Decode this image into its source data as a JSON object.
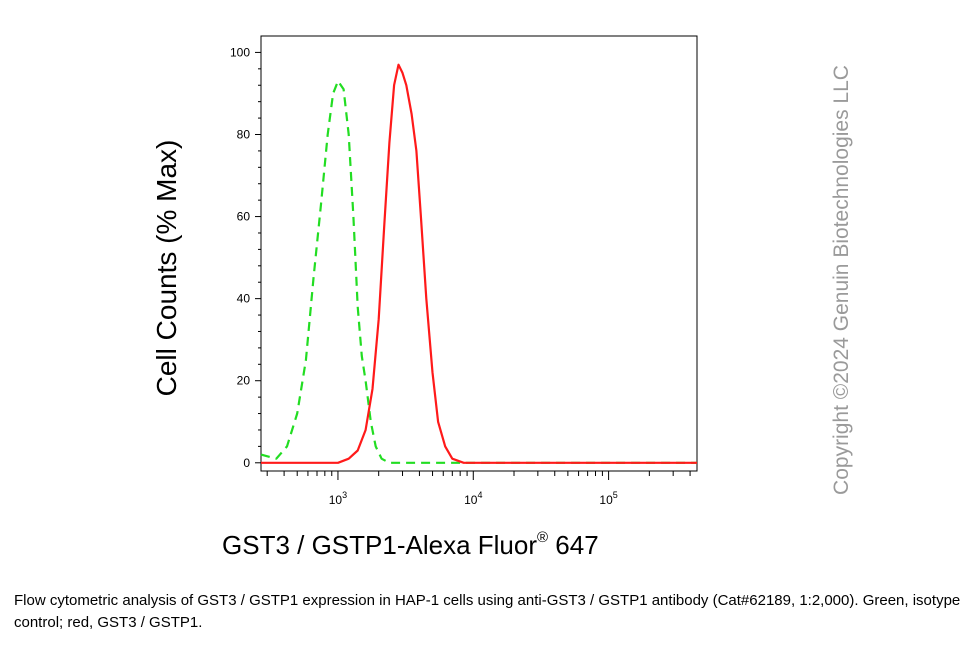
{
  "chart_data": {
    "type": "line",
    "ylabel": "Cell Counts (% Max)",
    "xlabel": {
      "main": "GST3 / GSTP1-Alexa Fluor",
      "reg": "®",
      "tail": " 647"
    },
    "x_scale": "log",
    "xlim": [
      270,
      450000
    ],
    "ylim": [
      -2,
      104
    ],
    "x_ticks": [
      {
        "value": 1000,
        "base": "10",
        "exp": "3"
      },
      {
        "value": 10000,
        "base": "10",
        "exp": "4"
      },
      {
        "value": 100000,
        "base": "10",
        "exp": "5"
      }
    ],
    "y_ticks": [
      0,
      20,
      40,
      60,
      80,
      100
    ],
    "grid": false,
    "series": [
      {
        "color": "#22dd22",
        "dash": "dashed",
        "points": [
          [
            270,
            2
          ],
          [
            350,
            1
          ],
          [
            420,
            4
          ],
          [
            500,
            12
          ],
          [
            580,
            25
          ],
          [
            660,
            45
          ],
          [
            750,
            63
          ],
          [
            840,
            80
          ],
          [
            920,
            90
          ],
          [
            1000,
            93
          ],
          [
            1100,
            91
          ],
          [
            1200,
            80
          ],
          [
            1300,
            60
          ],
          [
            1400,
            38
          ],
          [
            1500,
            26
          ],
          [
            1600,
            20
          ],
          [
            1750,
            10
          ],
          [
            1900,
            4
          ],
          [
            2100,
            1
          ],
          [
            2400,
            0
          ],
          [
            3000,
            0
          ],
          [
            10000,
            0
          ],
          [
            450000,
            0
          ]
        ]
      },
      {
        "color": "#ff1a1a",
        "dash": "solid",
        "points": [
          [
            270,
            0
          ],
          [
            1000,
            0
          ],
          [
            1200,
            1
          ],
          [
            1400,
            3
          ],
          [
            1600,
            8
          ],
          [
            1800,
            18
          ],
          [
            2000,
            35
          ],
          [
            2200,
            58
          ],
          [
            2400,
            78
          ],
          [
            2600,
            92
          ],
          [
            2800,
            97
          ],
          [
            3000,
            95
          ],
          [
            3200,
            92
          ],
          [
            3500,
            85
          ],
          [
            3800,
            76
          ],
          [
            4100,
            60
          ],
          [
            4500,
            40
          ],
          [
            5000,
            22
          ],
          [
            5500,
            10
          ],
          [
            6200,
            4
          ],
          [
            7000,
            1
          ],
          [
            8500,
            0
          ],
          [
            10000,
            0
          ],
          [
            100000,
            0
          ],
          [
            450000,
            0
          ]
        ]
      }
    ]
  },
  "watermark": "Copyright ©2024 Genuin Biotechnologies LLC",
  "caption": "Flow cytometric analysis of GST3 / GSTP1 expression in HAP-1 cells using anti-GST3 / GSTP1 antibody (Cat#62189, 1:2,000). Green, isotype control; red, GST3 / GSTP1."
}
